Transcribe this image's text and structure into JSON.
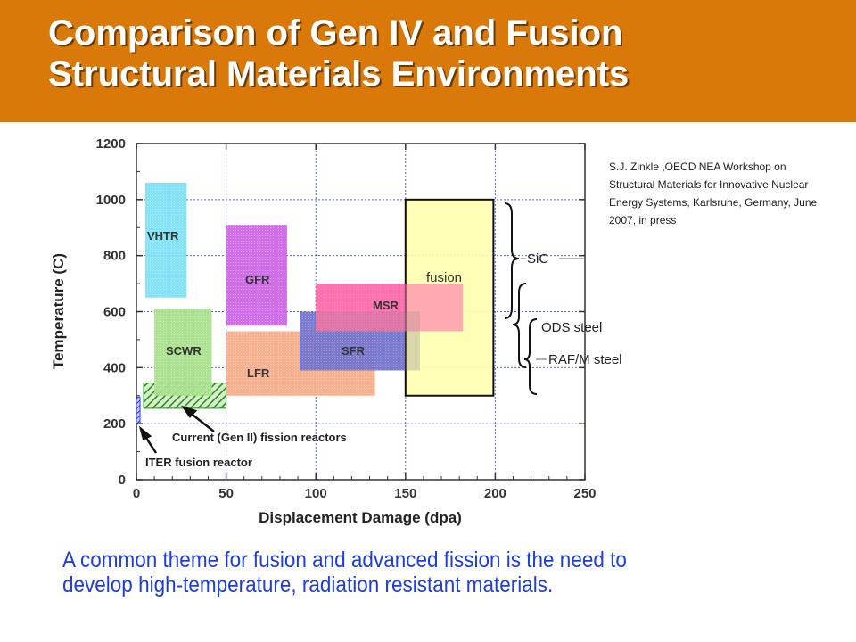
{
  "title": {
    "line1": "Comparison of Gen IV and Fusion",
    "line2": "Structural Materials Environments"
  },
  "citation": "S.J. Zinkle ,OECD NEA Workshop on Structural Materials for Innovative Nuclear Energy Systems, Karlsruhe, Germany, June 2007, in press",
  "caption": {
    "line1": "A common theme for fusion and advanced fission is the need to",
    "line2": "develop high-temperature, radiation resistant materials."
  },
  "colors": {
    "header": "#d8790a",
    "caption": "#1f3fd6",
    "grid": "#4f5fd8"
  },
  "chart_data": {
    "type": "area",
    "xlabel": "Displacement Damage (dpa)",
    "ylabel": "Temperature (C)",
    "xlim": [
      0,
      250
    ],
    "ylim": [
      0,
      1200
    ],
    "xticks": [
      0,
      50,
      100,
      150,
      200,
      250
    ],
    "yticks": [
      0,
      200,
      400,
      600,
      800,
      1000,
      1200
    ],
    "grid": true,
    "regions": [
      {
        "label": "VHTR",
        "x": [
          5,
          28
        ],
        "y": [
          650,
          1060
        ],
        "color": "#7fe0f5"
      },
      {
        "label": "SCWR",
        "x": [
          10,
          42
        ],
        "y": [
          300,
          610
        ],
        "color": "#a8e08c"
      },
      {
        "label": "GFR",
        "x": [
          50,
          84
        ],
        "y": [
          550,
          910
        ],
        "color": "#cc66e8"
      },
      {
        "label": "LFR",
        "x": [
          50,
          133
        ],
        "y": [
          300,
          530
        ],
        "color": "#f6ad8b"
      },
      {
        "label": "SFR",
        "x": [
          91,
          158
        ],
        "y": [
          390,
          600
        ],
        "color": "#6f6fe6"
      },
      {
        "label": "MSR",
        "x": [
          100,
          182
        ],
        "y": [
          530,
          700
        ],
        "color": "#ff6fae"
      },
      {
        "label": "fusion",
        "x": [
          150,
          199
        ],
        "y": [
          300,
          1000
        ],
        "color": "#ffffb0"
      }
    ],
    "hatched_regions": [
      {
        "x": [
          4,
          50
        ],
        "y": [
          255,
          345
        ],
        "color": "#1f8a1f"
      },
      {
        "x": [
          0,
          2
        ],
        "y": [
          200,
          295
        ],
        "color": "#2b3fd8"
      }
    ],
    "annotations": [
      "Current (Gen II) fission reactors",
      "ITER fusion reactor",
      "SiC",
      "ODS steel",
      "RAF/M steel"
    ]
  }
}
